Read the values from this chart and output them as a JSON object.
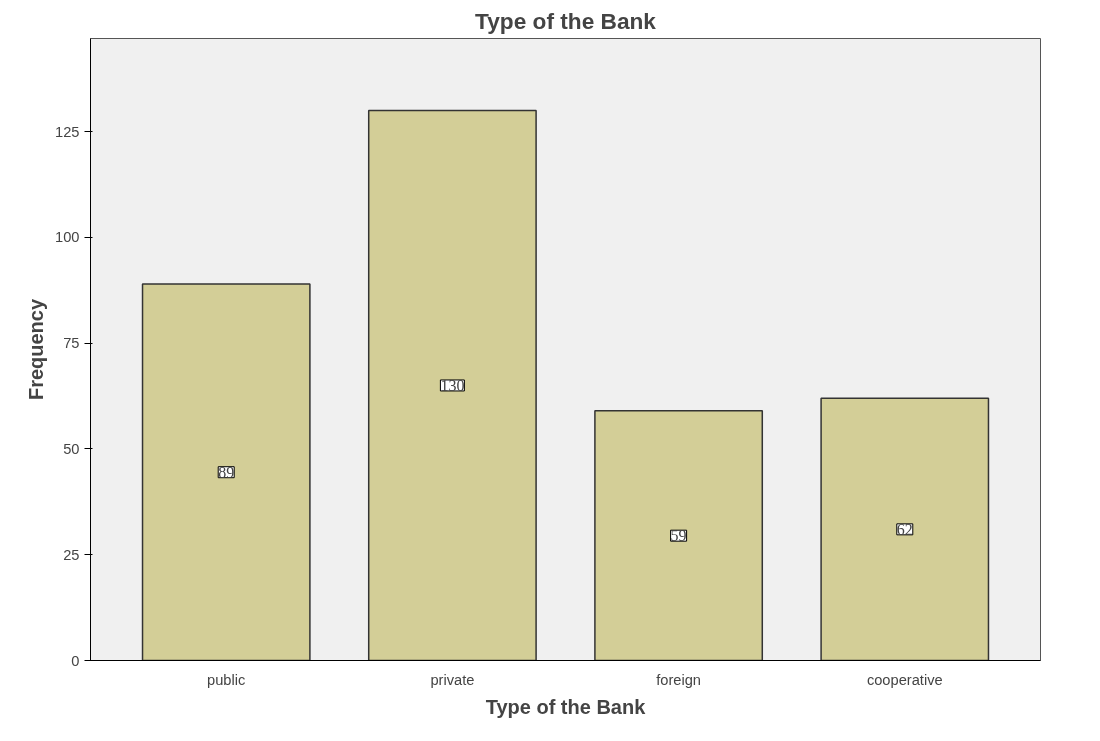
{
  "chart_data": {
    "type": "bar",
    "title": "Type of the Bank",
    "xlabel": "Type of the Bank",
    "ylabel": "Frequency",
    "categories": [
      "public",
      "private",
      "foreign",
      "cooperative"
    ],
    "values": [
      89,
      130,
      59,
      62
    ],
    "color": "#d3ce97",
    "ylim": [
      0,
      147
    ],
    "yticks": [
      0,
      25,
      50,
      75,
      100,
      125
    ],
    "grid": false,
    "data_labels": true
  }
}
